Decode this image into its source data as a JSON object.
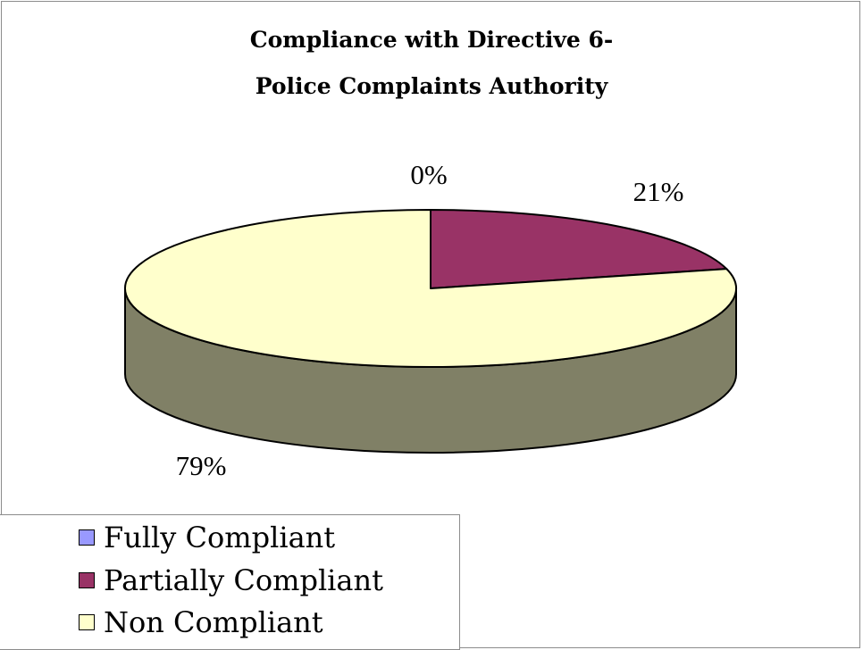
{
  "chart_data": {
    "type": "pie",
    "title_line1": "Compliance with Directive 6-",
    "title_line2": "Police Complaints Authority",
    "categories": [
      "Fully Compliant",
      "Partially Compliant",
      "Non Compliant"
    ],
    "values": [
      0,
      21,
      79
    ],
    "value_labels": [
      "0%",
      "21%",
      "79%"
    ],
    "colors": [
      "#9999ff",
      "#993366",
      "#ffffcc"
    ],
    "side_color": "#808066",
    "three_d": true,
    "legend_position": "bottom-left"
  }
}
